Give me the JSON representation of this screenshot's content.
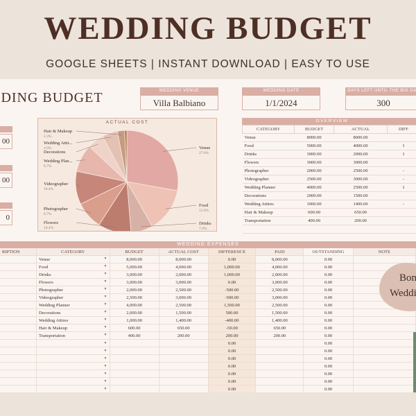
{
  "banner": {
    "title": "WEDDING BUDGET",
    "subtitle": "GOOGLE SHEETS | INSTANT DOWNLOAD | EASY TO USE"
  },
  "sheet": {
    "title": "DDING BUDGET",
    "venue_label": "WEDDING VENUE",
    "venue_value": "Villa Balbiano",
    "date_label": "WEDDING DATE",
    "date_value": "1/1/2024",
    "days_label": "DAYS LEFT UNTIL THE BIG DAY",
    "days_value": "300",
    "side_values": [
      "00",
      "00",
      "0"
    ]
  },
  "colors": {
    "accent": "#d9aea4",
    "sheet_bg": "#fbf5f1",
    "chart_bg": "#f6e9e0",
    "bonus_blob": "#dcbfb3"
  },
  "chart_data": {
    "type": "pie",
    "title": "ACTUAL COST",
    "series": [
      {
        "label": "Venue",
        "value": 8000,
        "percent": "27.8%",
        "color": "#e2a8a3"
      },
      {
        "label": "Food",
        "value": 4000,
        "percent": "13.9%",
        "color": "#eec2b5"
      },
      {
        "label": "Drinks",
        "value": 2000,
        "percent": "7.0%",
        "color": "#d8b1a6"
      },
      {
        "label": "Flowers",
        "value": 3000,
        "percent": "10.4%",
        "color": "#bd7d6e"
      },
      {
        "label": "Photographer",
        "value": 2500,
        "percent": "8.7%",
        "color": "#d99f8c"
      },
      {
        "label": "Videographer",
        "value": 3000,
        "percent": "10.4%",
        "color": "#c6867a"
      },
      {
        "label": "Wedding Plan...",
        "value": 2500,
        "percent": "8.7%",
        "color": "#e7b7ae"
      },
      {
        "label": "Decorations",
        "value": 1500,
        "percent": "",
        "color": "#f0d3c8"
      },
      {
        "label": "Wedding Attir...",
        "value": 1400,
        "percent": "4.9%",
        "color": "#e3c2b4"
      },
      {
        "label": "Hair & Makeup",
        "value": 650,
        "percent": "2.3%",
        "color": "#c89a7e"
      },
      {
        "label": "Transportation",
        "value": 200,
        "percent": "",
        "color": "#a8734f"
      }
    ]
  },
  "overview": {
    "title": "OVERVIEW",
    "columns": [
      "CATEGORY",
      "BUDGET",
      "ACTUAL",
      "DIFF"
    ],
    "rows": [
      [
        "Venue",
        "8000.00",
        "8000.00",
        ""
      ],
      [
        "Food",
        "5000.00",
        "4000.00",
        "1"
      ],
      [
        "Drinks",
        "3000.00",
        "2000.00",
        "1"
      ],
      [
        "Flowers",
        "3000.00",
        "3000.00",
        ""
      ],
      [
        "Photographer",
        "2000.00",
        "2500.00",
        "-"
      ],
      [
        "Videographer",
        "2500.00",
        "3000.00",
        "-"
      ],
      [
        "Wedding Planner",
        "4000.00",
        "2500.00",
        "1"
      ],
      [
        "Decorations",
        "2000.00",
        "1500.00",
        ""
      ],
      [
        "Wedding Attires",
        "1000.00",
        "1400.00",
        "-"
      ],
      [
        "Hair & Makeup",
        "600.00",
        "650.00",
        ""
      ],
      [
        "Transportation",
        "400.00",
        "200.00",
        ""
      ],
      [
        "",
        "",
        "",
        ""
      ],
      [
        "",
        "",
        "",
        ""
      ]
    ]
  },
  "expenses": {
    "title": "WEDDING EXPENSES",
    "columns": [
      "RIPTION",
      "CATEGORY",
      "BUDGET",
      "ACTUAL COST",
      "DIFFERENCE",
      "PAID",
      "OUTSTANDING",
      "NOTE"
    ],
    "rows": [
      [
        "",
        "Venue",
        "8,000.00",
        "8,000.00",
        "0.00",
        "8,000.00",
        "0.00",
        ""
      ],
      [
        "",
        "Food",
        "5,000.00",
        "4,000.00",
        "1,000.00",
        "4,000.00",
        "0.00",
        ""
      ],
      [
        "",
        "Drinks",
        "3,000.00",
        "2,000.00",
        "1,000.00",
        "2,000.00",
        "0.00",
        ""
      ],
      [
        "",
        "Flowers",
        "3,000.00",
        "3,000.00",
        "0.00",
        "3,000.00",
        "0.00",
        ""
      ],
      [
        "",
        "Photographer",
        "2,000.00",
        "2,500.00",
        "-500.00",
        "2,500.00",
        "0.00",
        ""
      ],
      [
        "",
        "Videographer",
        "2,500.00",
        "3,000.00",
        "-500.00",
        "3,000.00",
        "0.00",
        ""
      ],
      [
        "",
        "Wedding Planner",
        "4,000.00",
        "2,500.00",
        "1,500.00",
        "2,500.00",
        "0.00",
        ""
      ],
      [
        "",
        "Decorations",
        "2,000.00",
        "1,500.00",
        "500.00",
        "1,500.00",
        "0.00",
        ""
      ],
      [
        "",
        "Wedding Attires",
        "1,000.00",
        "1,400.00",
        "-400.00",
        "1,400.00",
        "0.00",
        ""
      ],
      [
        "",
        "Hair & Makeup",
        "600.00",
        "650.00",
        "-50.00",
        "650.00",
        "0.00",
        ""
      ],
      [
        "",
        "Transportation",
        "400.00",
        "200.00",
        "200.00",
        "200.00",
        "0.00",
        ""
      ],
      [
        "",
        "",
        "",
        "",
        "0.00",
        "",
        "0.00",
        ""
      ],
      [
        "",
        "",
        "",
        "",
        "0.00",
        "",
        "0.00",
        ""
      ],
      [
        "",
        "",
        "",
        "",
        "0.00",
        "",
        "0.00",
        ""
      ],
      [
        "",
        "",
        "",
        "",
        "0.00",
        "",
        "0.00",
        ""
      ],
      [
        "",
        "",
        "",
        "",
        "0.00",
        "",
        "0.00",
        ""
      ],
      [
        "",
        "",
        "",
        "",
        "0.00",
        "",
        "0.00",
        ""
      ],
      [
        "",
        "",
        "",
        "",
        "0.00",
        "",
        "0.00",
        ""
      ]
    ]
  },
  "bonus": {
    "line1": "Bon",
    "line2": "Weddi"
  }
}
